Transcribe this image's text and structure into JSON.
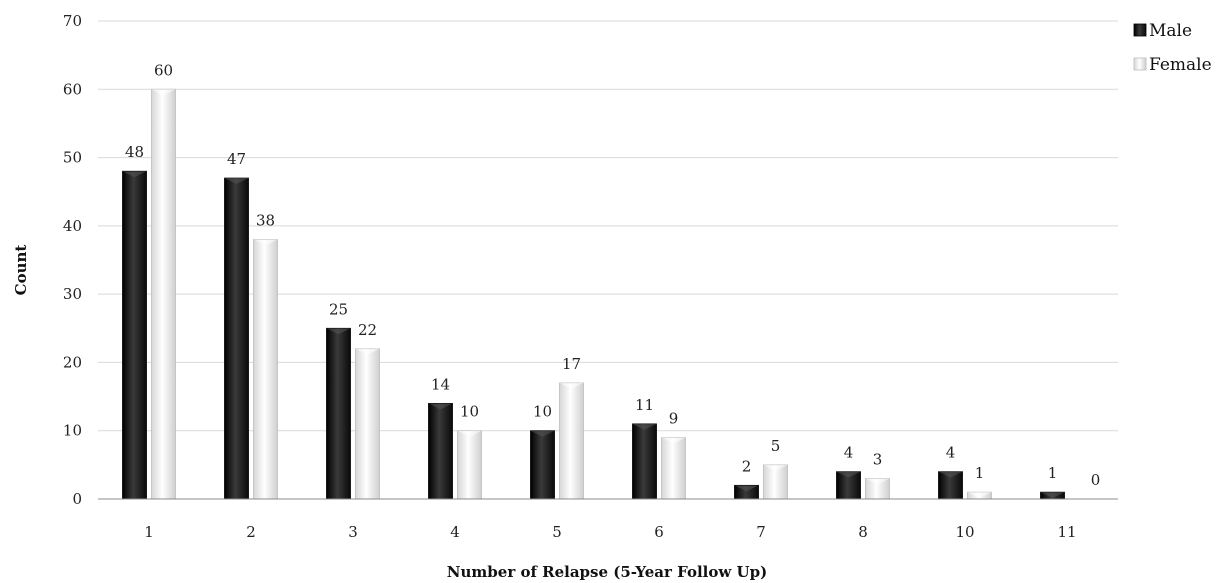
{
  "chart_data": {
    "type": "bar",
    "xlabel": "Number of Relapse (5-Year Follow Up)",
    "ylabel": "Count",
    "categories": [
      "1",
      "2",
      "3",
      "4",
      "5",
      "6",
      "7",
      "8",
      "10",
      "11"
    ],
    "series": [
      {
        "name": "Male",
        "values": [
          48,
          47,
          25,
          14,
          10,
          11,
          2,
          4,
          4,
          1
        ]
      },
      {
        "name": "Female",
        "values": [
          60,
          38,
          22,
          10,
          17,
          9,
          5,
          3,
          1,
          0
        ]
      }
    ],
    "ylim": [
      0,
      70
    ],
    "yticks": [
      "0",
      "10",
      "20",
      "30",
      "40",
      "50",
      "60",
      "70"
    ],
    "grid": true,
    "legend_position": "top-right",
    "colors": {
      "Male": "#1a1a1a",
      "Female": "#ececec"
    }
  }
}
